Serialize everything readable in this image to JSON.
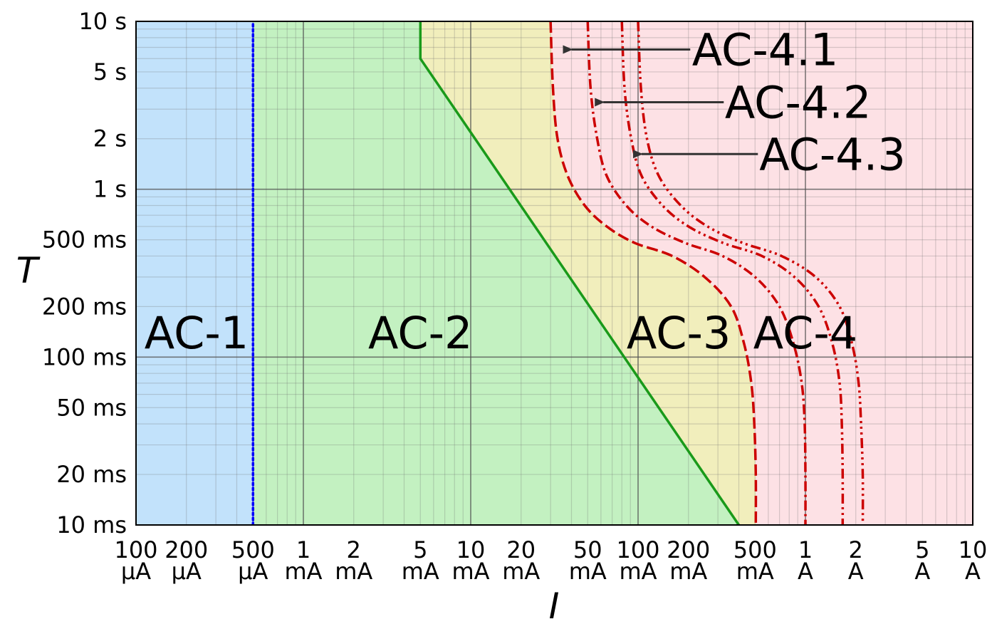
{
  "chart_data": {
    "type": "area",
    "title": "",
    "xlabel": "I",
    "ylabel": "T",
    "x_scale": "log",
    "y_scale": "log",
    "x_unit": "mA",
    "y_unit": "ms",
    "xlim": [
      0.1,
      10000
    ],
    "ylim": [
      10,
      10000
    ],
    "grid": "on",
    "x_ticks": [
      {
        "value": 0.1,
        "line1": "100",
        "line2": "µA"
      },
      {
        "value": 0.2,
        "line1": "200",
        "line2": "µA"
      },
      {
        "value": 0.5,
        "line1": "500",
        "line2": "µA"
      },
      {
        "value": 1,
        "line1": "1",
        "line2": "mA"
      },
      {
        "value": 2,
        "line1": "2",
        "line2": "mA"
      },
      {
        "value": 5,
        "line1": "5",
        "line2": "mA"
      },
      {
        "value": 10,
        "line1": "10",
        "line2": "mA"
      },
      {
        "value": 20,
        "line1": "20",
        "line2": "mA"
      },
      {
        "value": 50,
        "line1": "50",
        "line2": "mA"
      },
      {
        "value": 100,
        "line1": "100",
        "line2": "mA"
      },
      {
        "value": 200,
        "line1": "200",
        "line2": "mA"
      },
      {
        "value": 500,
        "line1": "500",
        "line2": "mA"
      },
      {
        "value": 1000,
        "line1": "1",
        "line2": "A"
      },
      {
        "value": 2000,
        "line1": "2",
        "line2": "A"
      },
      {
        "value": 5000,
        "line1": "5",
        "line2": "A"
      },
      {
        "value": 10000,
        "line1": "10",
        "line2": "A"
      }
    ],
    "y_ticks": [
      {
        "value": 10,
        "label": "10 ms"
      },
      {
        "value": 20,
        "label": "20 ms"
      },
      {
        "value": 50,
        "label": "50 ms"
      },
      {
        "value": 100,
        "label": "100 ms"
      },
      {
        "value": 200,
        "label": "200 ms"
      },
      {
        "value": 500,
        "label": "500 ms"
      },
      {
        "value": 1000,
        "label": "1 s"
      },
      {
        "value": 2000,
        "label": "2 s"
      },
      {
        "value": 5000,
        "label": "5 s"
      },
      {
        "value": 10000,
        "label": "10 s"
      }
    ],
    "regions": [
      {
        "name": "AC-1",
        "label": "AC-1",
        "color": "#c2e2fb",
        "label_at": [
          0.23,
          140
        ]
      },
      {
        "name": "AC-2",
        "label": "AC-2",
        "color": "#c3f1c1",
        "label_at": [
          5,
          140
        ]
      },
      {
        "name": "AC-3",
        "label": "AC-3",
        "color": "#f1eebc",
        "label_at": [
          175,
          140
        ]
      },
      {
        "name": "AC-4",
        "label": "AC-4",
        "color": "#fde1e5",
        "label_at": [
          1000,
          140
        ]
      }
    ],
    "boundaries": [
      {
        "name": "a",
        "style": "dotted",
        "color": "#0000ff",
        "points": [
          [
            0.5,
            10
          ],
          [
            0.5,
            10000
          ]
        ]
      },
      {
        "name": "b",
        "style": "solid",
        "color": "#1a9a1a",
        "points": [
          [
            5,
            10000
          ],
          [
            5,
            6000
          ],
          [
            400,
            10
          ]
        ]
      },
      {
        "name": "c1",
        "style": "dash",
        "color": "#cc0000",
        "points": [
          [
            30,
            10000
          ],
          [
            31,
            4000
          ],
          [
            33,
            2000
          ],
          [
            38,
            1200
          ],
          [
            48,
            800
          ],
          [
            65,
            600
          ],
          [
            95,
            480
          ],
          [
            160,
            400
          ],
          [
            250,
            300
          ],
          [
            360,
            200
          ],
          [
            430,
            120
          ],
          [
            475,
            70
          ],
          [
            495,
            40
          ],
          [
            505,
            20
          ],
          [
            505,
            10
          ]
        ]
      },
      {
        "name": "c2",
        "style": "dash-dot",
        "color": "#cc0000",
        "points": [
          [
            50,
            10000
          ],
          [
            52,
            4000
          ],
          [
            57,
            2000
          ],
          [
            65,
            1200
          ],
          [
            85,
            800
          ],
          [
            120,
            600
          ],
          [
            190,
            480
          ],
          [
            320,
            400
          ],
          [
            500,
            300
          ],
          [
            700,
            200
          ],
          [
            850,
            120
          ],
          [
            950,
            70
          ],
          [
            990,
            40
          ],
          [
            1000,
            20
          ],
          [
            1000,
            10
          ]
        ]
      },
      {
        "name": "c3",
        "style": "dash-dot-dot",
        "color": "#cc0000",
        "points": [
          [
            80,
            10000
          ],
          [
            83,
            4000
          ],
          [
            91,
            2000
          ],
          [
            105,
            1200
          ],
          [
            140,
            800
          ],
          [
            200,
            600
          ],
          [
            320,
            480
          ],
          [
            550,
            400
          ],
          [
            860,
            300
          ],
          [
            1200,
            200
          ],
          [
            1450,
            120
          ],
          [
            1600,
            70
          ],
          [
            1650,
            40
          ],
          [
            1670,
            20
          ],
          [
            1670,
            10
          ]
        ]
      },
      {
        "name": "c4",
        "style": "dash-dot-dot-dot",
        "color": "#cc0000",
        "points": [
          [
            100,
            10000
          ],
          [
            104,
            4000
          ],
          [
            113,
            2000
          ],
          [
            133,
            1200
          ],
          [
            180,
            800
          ],
          [
            260,
            600
          ],
          [
            420,
            480
          ],
          [
            720,
            400
          ],
          [
            1150,
            300
          ],
          [
            1600,
            200
          ],
          [
            1900,
            120
          ],
          [
            2080,
            70
          ],
          [
            2150,
            40
          ],
          [
            2200,
            20
          ],
          [
            2200,
            10
          ]
        ]
      }
    ],
    "callouts": [
      {
        "label": "AC-4.1",
        "text_at": [
          210,
          6800
        ],
        "arrow_from": [
          205,
          6800
        ],
        "arrow_to": [
          40,
          6800
        ]
      },
      {
        "label": "AC-4.2",
        "text_at": [
          330,
          3300
        ],
        "arrow_from": [
          325,
          3300
        ],
        "arrow_to": [
          62,
          3300
        ]
      },
      {
        "label": "AC-4.3",
        "text_at": [
          530,
          1620
        ],
        "arrow_from": [
          520,
          1620
        ],
        "arrow_to": [
          105,
          1620
        ]
      }
    ]
  }
}
